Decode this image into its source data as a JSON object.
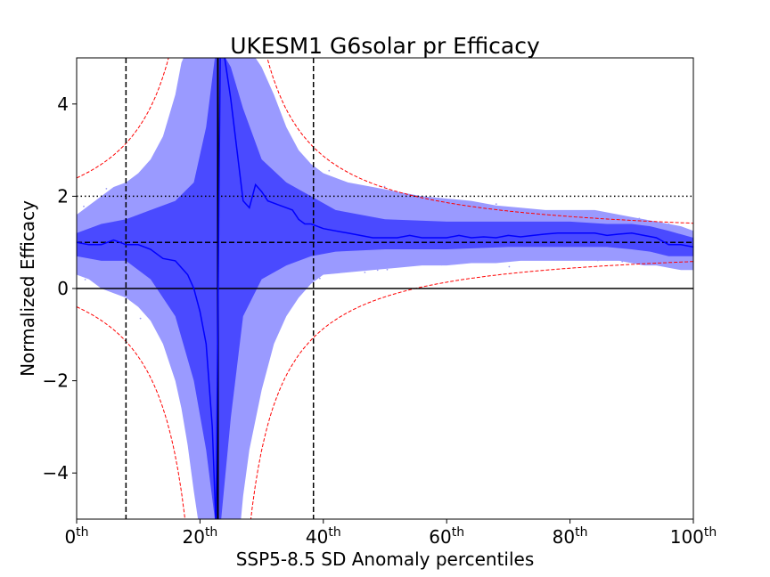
{
  "chart_data": {
    "type": "line",
    "title": "UKESM1 G6solar pr Efficacy",
    "xlabel": "SSP5-8.5 SD Anomaly percentiles",
    "ylabel": "Normalized Efficacy",
    "xlim": [
      0,
      100
    ],
    "ylim": [
      -5,
      5
    ],
    "xticks": [
      {
        "value": 0,
        "base": "0",
        "sup": "th"
      },
      {
        "value": 20,
        "base": "20",
        "sup": "th"
      },
      {
        "value": 40,
        "base": "40",
        "sup": "th"
      },
      {
        "value": 60,
        "base": "60",
        "sup": "th"
      },
      {
        "value": 80,
        "base": "80",
        "sup": "th"
      },
      {
        "value": 100,
        "base": "100",
        "sup": "th"
      }
    ],
    "yticks": [
      {
        "value": -4,
        "label": "−4"
      },
      {
        "value": -2,
        "label": "−2"
      },
      {
        "value": 0,
        "label": "0"
      },
      {
        "value": 2,
        "label": "2"
      },
      {
        "value": 4,
        "label": "4"
      }
    ],
    "grid": false,
    "colors": {
      "median": "#0000ff",
      "inner_band": "#4a4aff",
      "outer_band": "#9a9aff",
      "scatter": "#9c9cf2",
      "bounds": "#ff0000",
      "reference": "#000000"
    },
    "singularity_x": 22.9,
    "reference_lines": {
      "horizontal_solid": 0,
      "horizontal_dashed": 1,
      "horizontal_dotted": 2,
      "vertical_dashed": [
        8,
        38.4
      ]
    },
    "median": {
      "x": [
        0,
        2,
        4,
        6,
        8,
        10,
        12,
        14,
        16,
        18,
        19,
        20,
        21,
        22,
        22.6,
        23.3,
        24,
        25,
        26,
        27,
        28,
        29,
        30,
        31,
        32,
        33,
        34,
        35,
        36,
        37,
        38,
        40,
        42,
        44,
        46,
        48,
        50,
        52,
        54,
        56,
        58,
        60,
        62,
        64,
        66,
        68,
        70,
        72,
        74,
        76,
        78,
        80,
        82,
        84,
        86,
        88,
        90,
        92,
        94,
        96,
        98,
        100
      ],
      "y": [
        1.0,
        0.95,
        0.95,
        1.05,
        0.95,
        0.95,
        0.85,
        0.65,
        0.6,
        0.3,
        0.0,
        -0.5,
        -1.2,
        -3.0,
        -5.2,
        5.2,
        5.0,
        4.1,
        3.0,
        1.9,
        1.75,
        2.25,
        2.1,
        1.9,
        1.85,
        1.8,
        1.75,
        1.7,
        1.5,
        1.4,
        1.4,
        1.3,
        1.25,
        1.2,
        1.15,
        1.1,
        1.1,
        1.1,
        1.15,
        1.1,
        1.1,
        1.1,
        1.15,
        1.1,
        1.12,
        1.1,
        1.15,
        1.12,
        1.15,
        1.18,
        1.2,
        1.2,
        1.2,
        1.2,
        1.15,
        1.18,
        1.2,
        1.15,
        1.1,
        0.95,
        0.95,
        0.9
      ]
    },
    "inner_band": {
      "x": [
        0,
        4,
        8,
        12,
        16,
        19,
        21,
        22.6,
        23.3,
        25,
        27,
        30,
        34,
        38,
        42,
        50,
        60,
        70,
        80,
        86,
        90,
        93,
        96,
        100
      ],
      "lower": [
        0.7,
        0.6,
        0.6,
        0.2,
        -0.6,
        -2.0,
        -3.5,
        -5.2,
        -5.2,
        -2.8,
        -0.6,
        0.2,
        0.5,
        0.7,
        0.8,
        0.85,
        0.85,
        0.9,
        0.9,
        0.9,
        0.85,
        0.8,
        0.7,
        0.7
      ],
      "upper": [
        1.2,
        1.4,
        1.5,
        1.7,
        1.9,
        2.3,
        3.5,
        5.2,
        5.2,
        4.8,
        3.9,
        2.8,
        2.3,
        2.0,
        1.7,
        1.5,
        1.45,
        1.45,
        1.45,
        1.4,
        1.4,
        1.35,
        1.25,
        1.1
      ]
    },
    "outer_band": {
      "x": [
        0,
        2,
        4,
        6,
        8,
        10,
        12,
        14,
        16,
        17,
        18,
        19,
        19.9,
        21,
        22.6,
        23.3,
        24,
        25,
        26.5,
        27,
        28,
        30,
        32,
        34,
        36,
        38,
        40,
        44,
        48,
        52,
        56,
        60,
        64,
        68,
        72,
        76,
        80,
        84,
        88,
        90,
        92,
        94,
        96,
        98,
        100
      ],
      "lower": [
        0.3,
        0.2,
        0.0,
        -0.1,
        -0.2,
        -0.4,
        -0.7,
        -1.2,
        -2.0,
        -2.6,
        -3.4,
        -4.4,
        -5.2,
        -5.2,
        -5.2,
        -5.2,
        -5.2,
        -5.2,
        -5.2,
        -4.5,
        -3.5,
        -2.2,
        -1.2,
        -0.6,
        -0.2,
        0.1,
        0.3,
        0.35,
        0.4,
        0.45,
        0.5,
        0.5,
        0.55,
        0.55,
        0.6,
        0.6,
        0.6,
        0.6,
        0.6,
        0.55,
        0.5,
        0.5,
        0.45,
        0.4,
        0.4
      ],
      "upper": [
        1.6,
        1.8,
        2.0,
        2.2,
        2.3,
        2.5,
        2.8,
        3.3,
        4.2,
        4.9,
        5.2,
        5.2,
        5.2,
        5.2,
        5.2,
        5.2,
        5.2,
        5.2,
        5.2,
        5.2,
        5.2,
        4.8,
        4.2,
        3.5,
        3.0,
        2.7,
        2.5,
        2.3,
        2.2,
        2.1,
        2.0,
        1.95,
        1.9,
        1.8,
        1.75,
        1.7,
        1.7,
        1.7,
        1.6,
        1.55,
        1.5,
        1.45,
        1.4,
        1.35,
        1.25
      ]
    }
  }
}
